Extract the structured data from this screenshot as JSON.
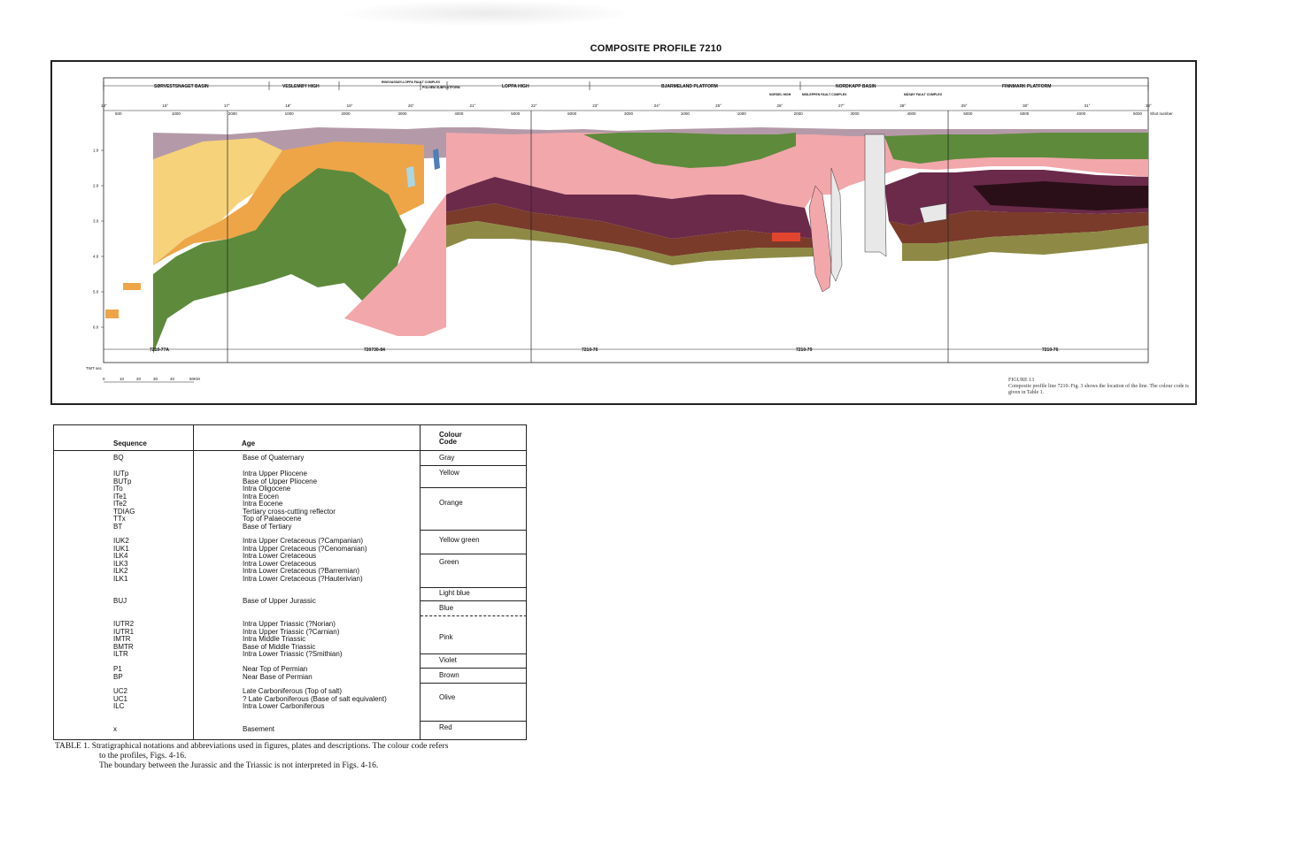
{
  "title": "COMPOSITE PROFILE 7210",
  "profile": {
    "regions": [
      "SØRVESTSNAGET BASIN",
      "VESLEMØY HIGH",
      "RINGVASSØY-LOPPA FAULT COMPLEX",
      "POLHEM SUBPLATFORM",
      "LOPPA HIGH",
      "BJARMELAND PLATFORM",
      "NORSEL HIGH",
      "MISLEPPEN FAULT COMPLEX",
      "NORDKAPP BASIN",
      "MÅSØY FAULT COMPLEX",
      "FINNMARK PLATFORM"
    ],
    "line_ids": [
      "7210-77A",
      "720730-84",
      "7210-76",
      "7210-79",
      "7210-76"
    ],
    "twt_ticks": [
      "1.0",
      "2.0",
      "3.0",
      "4.0",
      "5.0",
      "6.0"
    ],
    "twt_label": "TWT sec",
    "scale_label": "50KM",
    "scale_ticks": [
      "0",
      "10",
      "20",
      "30",
      "40"
    ],
    "shot_label": "Shot number",
    "longitudes": [
      "13°",
      "15°",
      "17°",
      "18°",
      "19°",
      "20°",
      "21°",
      "22°",
      "23°",
      "24°",
      "25°",
      "26°",
      "27°",
      "28°",
      "29°",
      "30°",
      "31°",
      "32°"
    ],
    "shots": [
      "500",
      "1000",
      "2000",
      "1000",
      "2000",
      "3000",
      "4000",
      "5000",
      "6000",
      "3000",
      "1000",
      "1000",
      "2000",
      "3000",
      "4000",
      "5000",
      "6000",
      "4000",
      "5000"
    ]
  },
  "figure_caption": {
    "title": "FIGURE 13",
    "text": "Composite profile line 7210. Fig. 3 shows the location of the line. The colour code is given in Table 1."
  },
  "colors": {
    "gray": "#b49aa8",
    "yellow": "#f6d27a",
    "orange": "#eea548",
    "yellowgreen": "#9bb25c",
    "green": "#5e8a3c",
    "lightblue": "#a9d7e6",
    "blue": "#4d7fb9",
    "pink": "#f2a7ab",
    "violet": "#6b2a4a",
    "brown": "#7a3b2a",
    "olive": "#8e8a46",
    "red": "#e2452d"
  },
  "table": {
    "headers": {
      "sequence": "Sequence",
      "age": "Age",
      "colour": "Colour\nCode"
    },
    "sequences": [
      "BQ",
      "IUTp\nBUTp\nITo\nITe1\nITe2\nTDIAG\nTTx\nBT",
      "IUK2\nIUK1\nILK4\nILK3\nILK2\nILK1",
      "BUJ",
      "IUTR2\nIUTR1\nIMTR\nBMTR\nILTR",
      "P1\nBP",
      "UC2\nUC1\nILC",
      "x"
    ],
    "ages": [
      "Base of Quaternary",
      "Intra Upper Pliocene\nBase of Upper Pliocene\nIntra Oligocene\nIntra Eocen\nIntra Eocene\nTertiary cross-cutting reflector\nTop of Palaeocene\nBase of Tertiary",
      "Intra Upper Cretaceous (?Campanian)\nIntra Upper Cretaceous (?Cenomanian)\nIntra Lower Cretaceous\nIntra Lower Cretaceous\nIntra Lower Cretaceous (?Barremian)\nIntra Lower Cretaceous (?Hauterivian)",
      "Base of Upper Jurassic",
      "Intra Upper Triassic (?Norian)\nIntra Upper Triassic (?Carnian)\nIntra Middle Triassic\nBase of Middle Triassic\nIntra Lower Triassic (?Smithian)",
      "Near Top of Permian\nNear Base of Permian",
      "Late Carboniferous (Top of salt)\n? Late Carboniferous (Base of salt equivalent)\nIntra Lower Carboniferous",
      "Basement"
    ],
    "colour_codes": [
      "Gray",
      "Yellow",
      "Orange",
      "Yellow green",
      "Green",
      "Light blue",
      "Blue",
      "Pink",
      "Violet",
      "Brown",
      "Olive",
      "Red"
    ]
  },
  "table_caption": {
    "line1": "TABLE 1. Stratigraphical notations and abbreviations used in figures, plates and descriptions. The colour code refers",
    "line2": "to the profiles, Figs. 4-16.",
    "line3": "The boundary between the Jurassic and the Triassic is not interpreted in Figs. 4-16."
  }
}
